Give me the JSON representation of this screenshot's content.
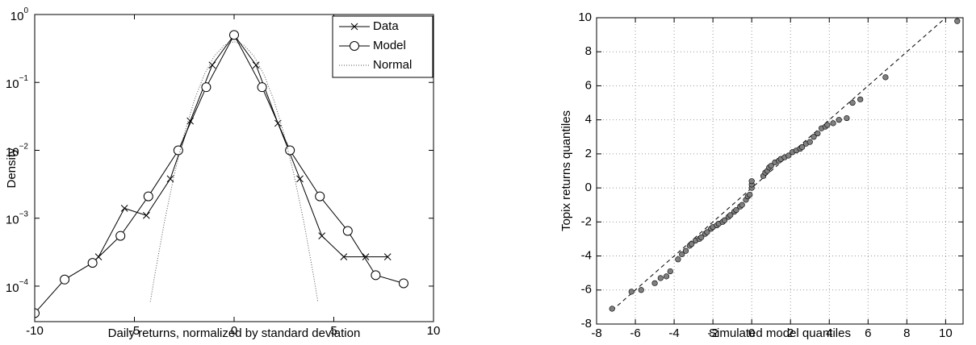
{
  "chart_data": [
    {
      "type": "line",
      "xlabel": "Daily returns, normalized by standard deviation",
      "ylabel": "Density",
      "ylog": true,
      "xlim": [
        -10,
        10
      ],
      "ylim": [
        3e-05,
        1
      ],
      "xticks": [
        -10,
        -5,
        0,
        5,
        10
      ],
      "yticks": [
        {
          "value": 0.0001,
          "label": "10",
          "exponent": "−4"
        },
        {
          "value": 0.001,
          "label": "10",
          "exponent": "−3"
        },
        {
          "value": 0.01,
          "label": "10",
          "exponent": "−2"
        },
        {
          "value": 0.1,
          "label": "10",
          "exponent": "−1"
        },
        {
          "value": 1,
          "label": "10",
          "exponent": "0"
        }
      ],
      "legend": "top-right",
      "series": [
        {
          "name": "Data",
          "color": "#000000",
          "marker": "x",
          "style": "solid",
          "x": [
            -6.8,
            -5.5,
            -4.4,
            -3.2,
            -2.2,
            -1.1,
            0,
            1.1,
            2.2,
            3.3,
            4.4,
            5.5,
            6.6,
            7.7
          ],
          "values": [
            0.00027,
            0.0014,
            0.0011,
            0.0038,
            0.027,
            0.18,
            0.5,
            0.18,
            0.025,
            0.0038,
            0.00055,
            0.00027,
            0.00027,
            0.00027
          ]
        },
        {
          "name": "Model",
          "color": "#000000",
          "marker": "o",
          "style": "solid",
          "x": [
            -10,
            -8.5,
            -7.1,
            -5.7,
            -4.3,
            -2.8,
            -1.4,
            0,
            1.4,
            2.8,
            4.3,
            5.7,
            7.1,
            8.5
          ],
          "values": [
            4e-05,
            0.000125,
            0.00022,
            0.00055,
            0.0021,
            0.01,
            0.085,
            0.5,
            0.085,
            0.01,
            0.0021,
            0.00065,
            0.000145,
            0.00011
          ]
        },
        {
          "name": "Normal",
          "color": "#555555",
          "marker": "none",
          "style": "dotted",
          "x": [
            -4.2,
            -4,
            -3.5,
            -3,
            -2.5,
            -2,
            -1.5,
            -1,
            -0.5,
            0,
            0.5,
            1,
            1.5,
            2,
            2.5,
            3,
            3.5,
            4,
            4.2
          ],
          "values": [
            5.9e-05,
            0.000134,
            0.00087,
            0.0044,
            0.0175,
            0.054,
            0.13,
            0.242,
            0.352,
            0.399,
            0.352,
            0.242,
            0.13,
            0.054,
            0.0175,
            0.0044,
            0.00087,
            0.000134,
            5.9e-05
          ]
        }
      ]
    },
    {
      "type": "scatter",
      "xlabel": "Simulated model quantiles",
      "ylabel": "Topix returns quantiles",
      "xlim": [
        -8,
        10.9
      ],
      "ylim": [
        -8,
        10
      ],
      "xticks": [
        -8,
        -6,
        -4,
        -2,
        0,
        2,
        4,
        6,
        8,
        10
      ],
      "yticks": [
        -8,
        -6,
        -4,
        -2,
        0,
        2,
        4,
        6,
        8,
        10
      ],
      "grid": true,
      "color": "#808080",
      "reference_line": {
        "x": [
          -7.2,
          10.6
        ],
        "y": [
          -7.2,
          10.6
        ]
      },
      "x": [
        -7.2,
        -6.2,
        -5.7,
        -5.0,
        -4.7,
        -4.4,
        -4.2,
        -3.8,
        -3.6,
        -3.4,
        -3.2,
        -3.1,
        -2.9,
        -2.7,
        -2.6,
        -2.4,
        -2.3,
        -2.1,
        -2.0,
        -1.8,
        -1.7,
        -1.5,
        -1.4,
        -1.2,
        -1.1,
        -0.9,
        -0.8,
        -0.6,
        -0.5,
        -0.3,
        -0.2,
        -0.1,
        0,
        0,
        0,
        0.6,
        0.7,
        0.8,
        0.9,
        1.0,
        1.2,
        1.4,
        1.5,
        1.7,
        1.9,
        2.1,
        2.3,
        2.5,
        2.6,
        2.8,
        3.0,
        3.2,
        3.4,
        3.6,
        3.8,
        3.9,
        4.2,
        4.5,
        4.9,
        5.2,
        5.6,
        6.9,
        10.6
      ],
      "y": [
        -7.1,
        -6.1,
        -6.0,
        -5.6,
        -5.3,
        -5.2,
        -4.9,
        -4.2,
        -3.9,
        -3.7,
        -3.4,
        -3.3,
        -3.1,
        -3.0,
        -2.9,
        -2.7,
        -2.6,
        -2.4,
        -2.3,
        -2.2,
        -2.1,
        -2.0,
        -1.9,
        -1.7,
        -1.6,
        -1.4,
        -1.3,
        -1.1,
        -1.0,
        -0.7,
        -0.5,
        -0.4,
        0,
        0.2,
        0.4,
        0.7,
        0.9,
        1.0,
        1.2,
        1.3,
        1.5,
        1.6,
        1.7,
        1.8,
        1.9,
        2.1,
        2.2,
        2.3,
        2.4,
        2.6,
        2.7,
        3.0,
        3.2,
        3.5,
        3.6,
        3.7,
        3.8,
        4.0,
        4.1,
        5.0,
        5.2,
        6.5,
        9.8
      ]
    }
  ]
}
